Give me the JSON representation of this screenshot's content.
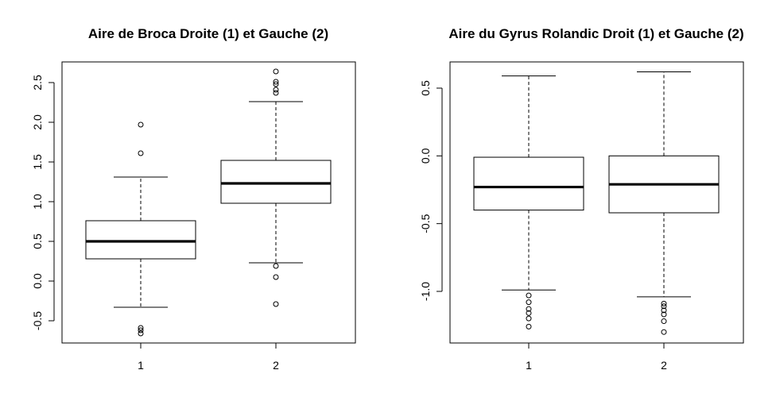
{
  "chart_data": [
    {
      "type": "boxplot",
      "title": "Aire de Broca Droite (1) et Gauche (2)",
      "xlabel": "",
      "ylabel": "",
      "categories": [
        "1",
        "2"
      ],
      "ylim": [
        -0.8,
        2.75
      ],
      "yticks": [
        "-0.5",
        "0.0",
        "0.5",
        "1.0",
        "1.5",
        "2.0",
        "2.5"
      ],
      "grid": false,
      "boxes": [
        {
          "category": "1",
          "whisker_low": -0.33,
          "q1": 0.28,
          "median": 0.5,
          "q3": 0.76,
          "whisker_high": 1.31,
          "outliers": [
            1.97,
            1.61,
            -0.59,
            -0.62,
            -0.66
          ]
        },
        {
          "category": "2",
          "whisker_low": 0.23,
          "q1": 0.98,
          "median": 1.23,
          "q3": 1.52,
          "whisker_high": 2.26,
          "outliers": [
            2.64,
            2.51,
            2.48,
            2.41,
            2.37,
            0.19,
            0.05,
            -0.29
          ]
        }
      ]
    },
    {
      "type": "boxplot",
      "title": "Aire du Gyrus Rolandic Droit (1) et Gauche (2)",
      "xlabel": "",
      "ylabel": "",
      "categories": [
        "1",
        "2"
      ],
      "ylim": [
        -1.38,
        0.7
      ],
      "yticks": [
        "-1.0",
        "-0.5",
        "0.0",
        "0.5"
      ],
      "grid": false,
      "boxes": [
        {
          "category": "1",
          "whisker_low": -0.99,
          "q1": -0.4,
          "median": -0.23,
          "q3": -0.01,
          "whisker_high": 0.59,
          "outliers": [
            -1.03,
            -1.08,
            -1.13,
            -1.16,
            -1.2,
            -1.26
          ]
        },
        {
          "category": "2",
          "whisker_low": -1.04,
          "q1": -0.42,
          "median": -0.21,
          "q3": 0.0,
          "whisker_high": 0.62,
          "outliers": [
            -1.09,
            -1.11,
            -1.14,
            -1.17,
            -1.22,
            -1.3
          ]
        }
      ]
    }
  ]
}
